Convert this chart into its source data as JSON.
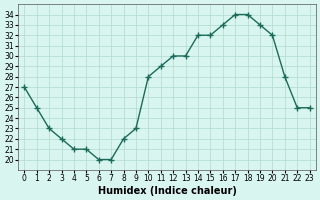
{
  "x": [
    0,
    1,
    2,
    3,
    4,
    5,
    6,
    7,
    8,
    9,
    10,
    11,
    12,
    13,
    14,
    15,
    16,
    17,
    18,
    19,
    20,
    21,
    22,
    23
  ],
  "y": [
    27,
    25,
    23,
    22,
    21,
    21,
    20,
    20,
    22,
    23,
    28,
    29,
    30,
    30,
    32,
    32,
    33,
    34,
    34,
    33,
    32,
    28,
    25,
    25
  ],
  "xlabel": "Humidex (Indice chaleur)",
  "ylabel": "",
  "ylim": [
    19,
    35
  ],
  "xlim": [
    -0.5,
    23.5
  ],
  "yticks": [
    20,
    21,
    22,
    23,
    24,
    25,
    26,
    27,
    28,
    29,
    30,
    31,
    32,
    33,
    34
  ],
  "xticks": [
    0,
    1,
    2,
    3,
    4,
    5,
    6,
    7,
    8,
    9,
    10,
    11,
    12,
    13,
    14,
    15,
    16,
    17,
    18,
    19,
    20,
    21,
    22,
    23
  ],
  "line_color": "#1a6b5a",
  "marker": "+",
  "bg_color": "#d9f5f0",
  "grid_color": "#b0d9d0",
  "label_fontsize": 7,
  "tick_fontsize": 5.5
}
